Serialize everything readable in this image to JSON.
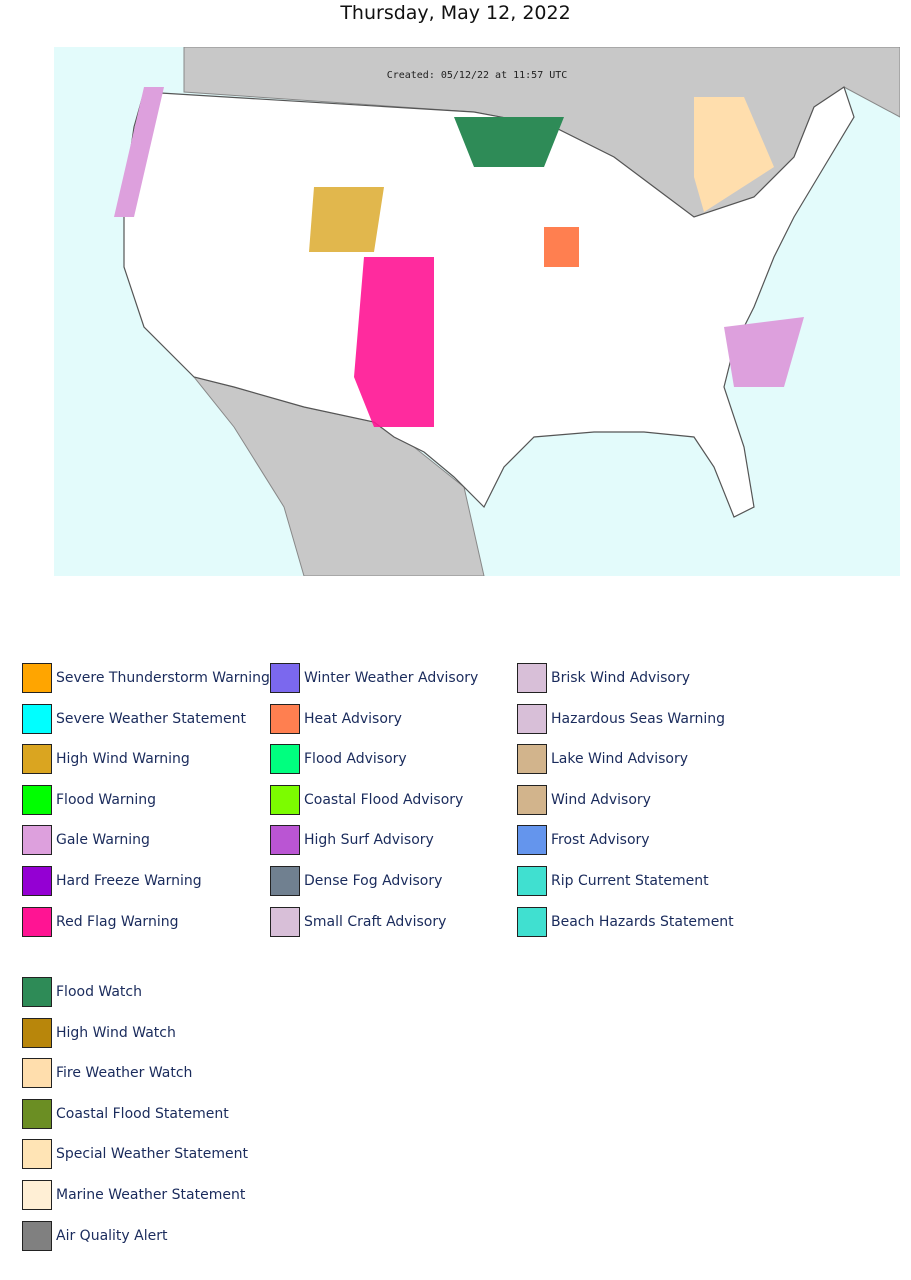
{
  "header": {
    "title": "Thursday, May 12, 2022"
  },
  "map": {
    "caption": "Created: 05/12/22 at 11:57 UTC"
  },
  "legend": {
    "columns": [
      [
        {
          "label": "Severe Thunderstorm Warning",
          "color": "#ffa500"
        },
        {
          "label": "Severe Weather Statement",
          "color": "#00ffff"
        },
        {
          "label": "High Wind Warning",
          "color": "#daa520"
        },
        {
          "label": "Flood Warning",
          "color": "#00ff00"
        },
        {
          "label": "Gale Warning",
          "color": "#dda0dd"
        },
        {
          "label": "Hard Freeze Warning",
          "color": "#9400d3"
        },
        {
          "label": "Red Flag Warning",
          "color": "#ff1493"
        }
      ],
      [
        {
          "label": "Winter Weather Advisory",
          "color": "#7b68ee"
        },
        {
          "label": "Heat Advisory",
          "color": "#ff7f50"
        },
        {
          "label": "Flood Advisory",
          "color": "#00ff7f"
        },
        {
          "label": "Coastal Flood Advisory",
          "color": "#7cfc00"
        },
        {
          "label": "High Surf Advisory",
          "color": "#ba55d3"
        },
        {
          "label": "Dense Fog Advisory",
          "color": "#708090"
        },
        {
          "label": "Small Craft Advisory",
          "color": "#d8bfd8"
        }
      ],
      [
        {
          "label": "Brisk Wind Advisory",
          "color": "#d8bfd8"
        },
        {
          "label": "Hazardous Seas Warning",
          "color": "#d8bfd8"
        },
        {
          "label": "Lake Wind Advisory",
          "color": "#d2b48c"
        },
        {
          "label": "Wind Advisory",
          "color": "#d2b48c"
        },
        {
          "label": "Frost Advisory",
          "color": "#6495ed"
        },
        {
          "label": "Rip Current Statement",
          "color": "#40e0d0"
        },
        {
          "label": "Beach Hazards Statement",
          "color": "#40e0d0"
        }
      ]
    ],
    "watches": [
      {
        "label": "Flood Watch",
        "color": "#2e8b57"
      },
      {
        "label": "High Wind Watch",
        "color": "#b8860b"
      },
      {
        "label": "Fire Weather Watch",
        "color": "#ffdead"
      },
      {
        "label": "Coastal Flood Statement",
        "color": "#6b8e23"
      },
      {
        "label": "Special Weather Statement",
        "color": "#ffe4b5"
      },
      {
        "label": "Marine Weather Statement",
        "color": "#ffefd5"
      },
      {
        "label": "Air Quality Alert",
        "color": "#808080"
      }
    ]
  }
}
